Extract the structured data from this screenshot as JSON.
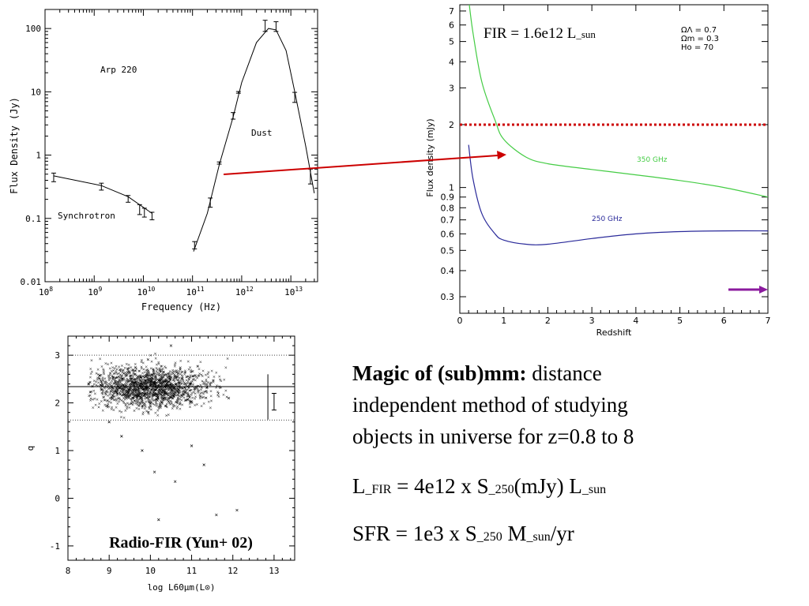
{
  "colors": {
    "red": "#cc0000",
    "green": "#44cc44",
    "blue": "#2a2a9a",
    "purple": "#8b1a9e",
    "axis": "#000000"
  },
  "text": {
    "magic_bold": "Magic of (sub)mm:",
    "magic_rest": " distance",
    "magic_line2": "independent method of studying",
    "magic_line3": "objects in universe for z=0.8 to 8",
    "lfir_L": "L",
    "lfir_sub": "_FIR",
    "lfir_mid": " = 4e12 x S",
    "lfir_sub2": "_250",
    "lfir_mid2": "(mJy) L",
    "lfir_sub3": "_sun",
    "sfr_main": "SFR = 1e3 x S",
    "sfr_sub": "_250",
    "sfr_mid": " M",
    "sfr_sub2": "_sun",
    "sfr_end": "/yr"
  },
  "chart_data": [
    {
      "type": "scatter",
      "title": "",
      "annotations": [
        "Arp 220",
        "Dust",
        "Synchrotron"
      ],
      "xlabel": "Frequency (Hz)",
      "ylabel": "Flux Density (Jy)",
      "xscale": "log",
      "yscale": "log",
      "xlim": [
        100000000.0,
        35000000000000.0
      ],
      "ylim": [
        0.01,
        200
      ],
      "xticks": [
        {
          "v": 100000000.0,
          "m": "10",
          "e": "8"
        },
        {
          "v": 1000000000.0,
          "m": "10",
          "e": "9"
        },
        {
          "v": 10000000000.0,
          "m": "10",
          "e": "10"
        },
        {
          "v": 100000000000.0,
          "m": "10",
          "e": "11"
        },
        {
          "v": 1000000000000.0,
          "m": "10",
          "e": "12"
        },
        {
          "v": 10000000000000.0,
          "m": "10",
          "e": "13"
        }
      ],
      "yticks": [
        {
          "v": 0.01,
          "l": "0.01"
        },
        {
          "v": 0.1,
          "l": "0.1"
        },
        {
          "v": 1,
          "l": "1"
        },
        {
          "v": 10,
          "l": "10"
        },
        {
          "v": 100,
          "l": "100"
        }
      ],
      "points": [
        {
          "x": 150000000.0,
          "y": 0.45,
          "lo": 0.38,
          "hi": 0.52
        },
        {
          "x": 1400000000.0,
          "y": 0.32,
          "lo": 0.28,
          "hi": 0.36
        },
        {
          "x": 4900000000.0,
          "y": 0.205,
          "lo": 0.18,
          "hi": 0.23
        },
        {
          "x": 8400000000.0,
          "y": 0.14,
          "lo": 0.115,
          "hi": 0.165
        },
        {
          "x": 10500000000.0,
          "y": 0.125,
          "lo": 0.105,
          "hi": 0.145
        },
        {
          "x": 15000000000.0,
          "y": 0.11,
          "lo": 0.095,
          "hi": 0.125
        },
        {
          "x": 110000000000.0,
          "y": 0.038,
          "lo": 0.033,
          "hi": 0.043
        },
        {
          "x": 230000000000.0,
          "y": 0.18,
          "lo": 0.15,
          "hi": 0.21
        },
        {
          "x": 350000000000.0,
          "y": 0.75,
          "lo": 0.72,
          "hi": 0.78
        },
        {
          "x": 670000000000.0,
          "y": 4.2,
          "lo": 3.7,
          "hi": 4.7
        },
        {
          "x": 860000000000.0,
          "y": 9.8,
          "lo": 9.5,
          "hi": 10.1
        },
        {
          "x": 3000000000000.0,
          "y": 112,
          "lo": 90,
          "hi": 135
        },
        {
          "x": 5000000000000.0,
          "y": 108,
          "lo": 90,
          "hi": 128
        },
        {
          "x": 12000000000000.0,
          "y": 8.2,
          "lo": 6.8,
          "hi": 9.8
        },
        {
          "x": 25000000000000.0,
          "y": 0.48,
          "lo": 0.35,
          "hi": 0.6
        }
      ],
      "sync_curve": [
        [
          150000000.0,
          0.47
        ],
        [
          1400000000.0,
          0.33
        ],
        [
          4900000000.0,
          0.22
        ],
        [
          15000000000.0,
          0.12
        ]
      ],
      "dust_curve": [
        [
          105000000000.0,
          0.03
        ],
        [
          200000000000.0,
          0.12
        ],
        [
          350000000000.0,
          0.7
        ],
        [
          670000000000.0,
          4
        ],
        [
          1000000000000.0,
          14
        ],
        [
          2000000000000.0,
          60
        ],
        [
          3500000000000.0,
          100
        ],
        [
          5000000000000.0,
          95
        ],
        [
          8000000000000.0,
          45
        ],
        [
          12000000000000.0,
          10
        ],
        [
          20000000000000.0,
          1.4
        ],
        [
          30000000000000.0,
          0.25
        ]
      ]
    },
    {
      "type": "line",
      "title": "",
      "annotation": "FIR = 1.6e12 L_sun",
      "cosmology": [
        "ΩΛ = 0.7",
        "Ωm = 0.3",
        "Ho = 70"
      ],
      "xlabel": "Redshift",
      "ylabel": "Flux density (mJy)",
      "yscale": "log",
      "xlim": [
        0,
        7
      ],
      "ylim": [
        0.25,
        7.5
      ],
      "xticks": [
        0,
        1,
        2,
        3,
        4,
        5,
        6,
        7
      ],
      "yticks": [
        {
          "v": 0.3,
          "l": "0.3"
        },
        {
          "v": 0.4,
          "l": "0.4"
        },
        {
          "v": 0.5,
          "l": "0.5"
        },
        {
          "v": 0.6,
          "l": "0.6"
        },
        {
          "v": 0.7,
          "l": "0.7"
        },
        {
          "v": 0.8,
          "l": "0.8"
        },
        {
          "v": 0.9,
          "l": "0.9"
        },
        {
          "v": 1,
          "l": "1"
        },
        {
          "v": 2,
          "l": "2"
        },
        {
          "v": 3,
          "l": "3"
        },
        {
          "v": 4,
          "l": "4"
        },
        {
          "v": 5,
          "l": "5"
        },
        {
          "v": 6,
          "l": "6"
        },
        {
          "v": 7,
          "l": "7"
        }
      ],
      "threshold": 2,
      "series": [
        {
          "name": "350 GHz",
          "points": [
            [
              0.2,
              8
            ],
            [
              0.3,
              5.5
            ],
            [
              0.5,
              3.2
            ],
            [
              0.8,
              2.1
            ],
            [
              1,
              1.7
            ],
            [
              1.5,
              1.4
            ],
            [
              2,
              1.3
            ],
            [
              3,
              1.22
            ],
            [
              4,
              1.15
            ],
            [
              5,
              1.08
            ],
            [
              6,
              1.0
            ],
            [
              7,
              0.9
            ]
          ]
        },
        {
          "name": "250 GHz",
          "points": [
            [
              0.2,
              1.6
            ],
            [
              0.3,
              1.1
            ],
            [
              0.5,
              0.75
            ],
            [
              0.8,
              0.6
            ],
            [
              1,
              0.56
            ],
            [
              1.5,
              0.535
            ],
            [
              2,
              0.535
            ],
            [
              3,
              0.57
            ],
            [
              4,
              0.6
            ],
            [
              5,
              0.615
            ],
            [
              6,
              0.62
            ],
            [
              7,
              0.62
            ]
          ]
        }
      ]
    },
    {
      "type": "scatter",
      "title": "",
      "annotation": "Radio-FIR (Yun+ 02)",
      "xlabel": "log L60μm(L⊙)",
      "ylabel": "q",
      "xlim": [
        8,
        13.5
      ],
      "ylim": [
        -1.3,
        3.4
      ],
      "xticks": [
        8,
        9,
        10,
        11,
        12,
        13
      ],
      "yticks": [
        -1,
        0,
        1,
        2,
        3
      ],
      "mean_q": 2.34,
      "scatter_lines": [
        3.0,
        1.64
      ],
      "errorbar": [
        13.0,
        2.0,
        1.85,
        2.2
      ],
      "outliers": [
        [
          10.2,
          -0.45
        ],
        [
          11.6,
          -0.35
        ],
        [
          10.6,
          0.35
        ],
        [
          11.3,
          0.7
        ],
        [
          10.1,
          0.55
        ],
        [
          9.8,
          1.0
        ],
        [
          9.3,
          1.3
        ],
        [
          11.0,
          1.1
        ],
        [
          12.1,
          -0.25
        ],
        [
          8.5,
          2.4
        ],
        [
          9.0,
          1.6
        ],
        [
          11.9,
          2.1
        ],
        [
          10.5,
          3.2
        ]
      ]
    }
  ]
}
